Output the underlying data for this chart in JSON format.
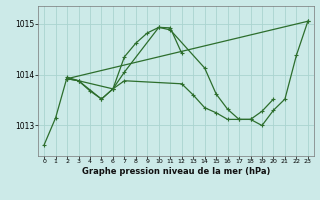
{
  "title": "Graphe pression niveau de la mer (hPa)",
  "bg_color": "#cceae8",
  "grid_color": "#aad4d0",
  "line_color": "#2d6e2d",
  "x_ticks": [
    0,
    1,
    2,
    3,
    4,
    5,
    6,
    7,
    8,
    9,
    10,
    11,
    12,
    13,
    14,
    15,
    16,
    17,
    18,
    19,
    20,
    21,
    22,
    23
  ],
  "y_ticks": [
    1013,
    1014,
    1015
  ],
  "ylim": [
    1012.4,
    1015.35
  ],
  "xlim": [
    -0.5,
    23.5
  ],
  "series": [
    {
      "x": [
        0,
        1,
        2,
        3,
        4,
        5,
        6,
        7,
        10,
        11,
        14,
        15,
        16,
        17,
        18,
        19,
        20,
        21,
        22,
        23
      ],
      "y": [
        1012.62,
        1013.15,
        1013.95,
        1013.88,
        1013.68,
        1013.52,
        1013.72,
        1014.05,
        1014.93,
        1014.88,
        1014.13,
        1013.62,
        1013.32,
        1013.12,
        1013.12,
        1013.0,
        1013.3,
        1013.52,
        1014.38,
        1015.05
      ]
    },
    {
      "x": [
        2,
        3,
        6,
        7,
        8,
        9,
        10,
        11,
        12
      ],
      "y": [
        1013.92,
        1013.88,
        1013.72,
        1014.35,
        1014.62,
        1014.82,
        1014.93,
        1014.92,
        1014.42
      ]
    },
    {
      "x": [
        2,
        3,
        5,
        6,
        7,
        12,
        13,
        14,
        15,
        16,
        17,
        18,
        19,
        20
      ],
      "y": [
        1013.92,
        1013.88,
        1013.52,
        1013.72,
        1013.88,
        1013.82,
        1013.6,
        1013.35,
        1013.25,
        1013.12,
        1013.12,
        1013.12,
        1013.28,
        1013.52
      ]
    },
    {
      "x": [
        2,
        23
      ],
      "y": [
        1013.92,
        1015.05
      ]
    }
  ]
}
